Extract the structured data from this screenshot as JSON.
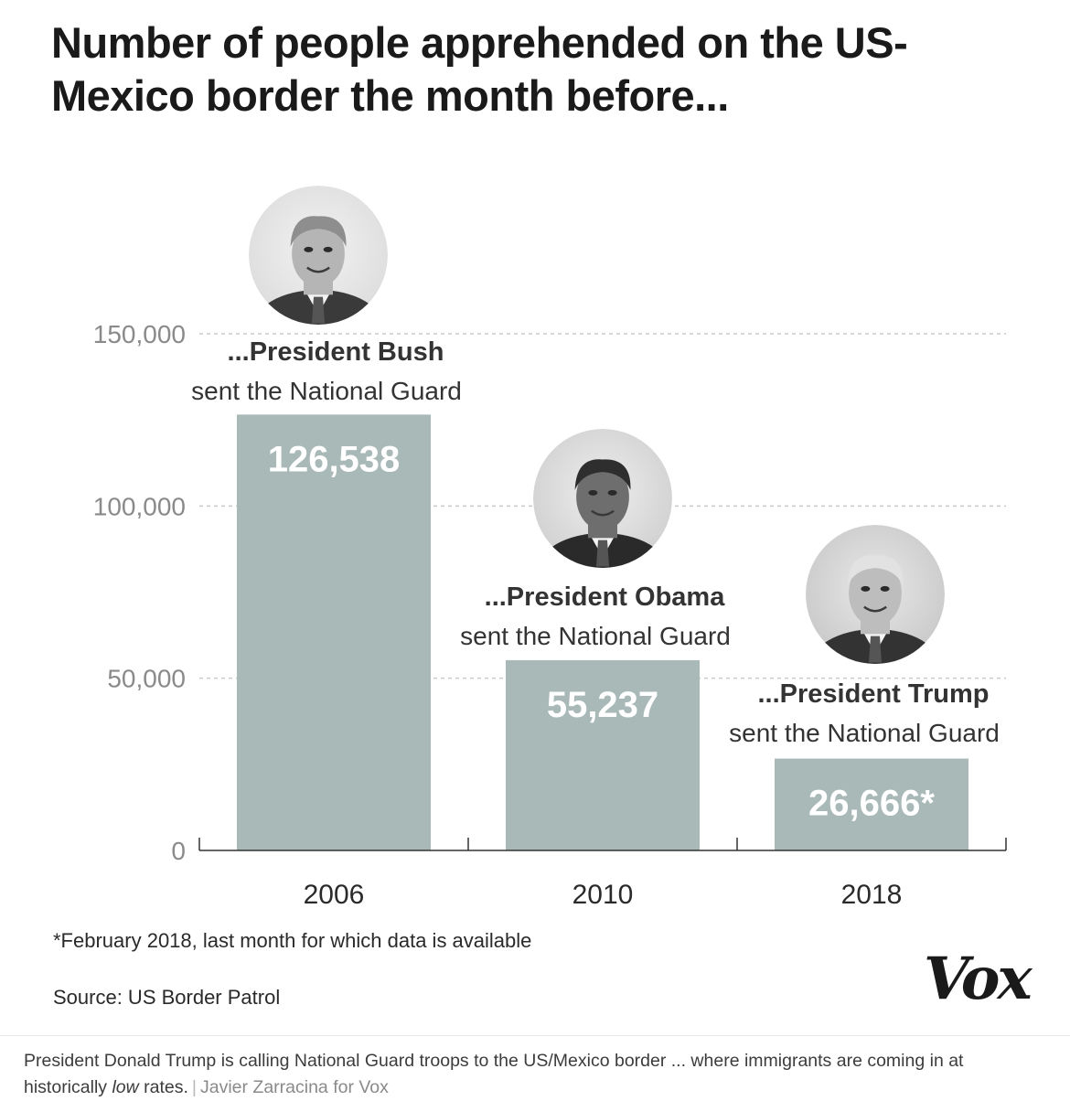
{
  "chart_data": {
    "type": "bar",
    "title": "Number of people apprehended on the US-Mexico border the month before...",
    "categories": [
      "2006",
      "2010",
      "2018"
    ],
    "values": [
      126538,
      55237,
      26666
    ],
    "value_labels": [
      "126,538",
      "55,237",
      "26,666*"
    ],
    "annotations": [
      {
        "president": "...President Bush",
        "subtitle": "sent the National Guard"
      },
      {
        "president": "...President Obama",
        "subtitle": "sent the National Guard"
      },
      {
        "president": "...President Trump",
        "subtitle": "sent the National Guard"
      }
    ],
    "yticks": [
      0,
      50000,
      100000,
      150000
    ],
    "ytick_labels": [
      "0",
      "50,000",
      "100,000",
      "150,000"
    ],
    "ylim": [
      0,
      150000
    ],
    "xlabel": "",
    "ylabel": "",
    "grid": true,
    "bar_color": "#a9b9b8"
  },
  "footnote": "*February 2018, last month for which data is available",
  "source": "Source: US Border Patrol",
  "brand": "Vox",
  "caption": {
    "text_before": "President Donald Trump is calling National Guard troops to the US/Mexico border ... where immigrants are coming in at historically ",
    "emphasis": "low",
    "text_after": " rates.",
    "separator": "|",
    "credit": "Javier Zarracina for Vox"
  },
  "icons": [
    "portrait-bush-icon",
    "portrait-obama-icon",
    "portrait-trump-icon"
  ]
}
